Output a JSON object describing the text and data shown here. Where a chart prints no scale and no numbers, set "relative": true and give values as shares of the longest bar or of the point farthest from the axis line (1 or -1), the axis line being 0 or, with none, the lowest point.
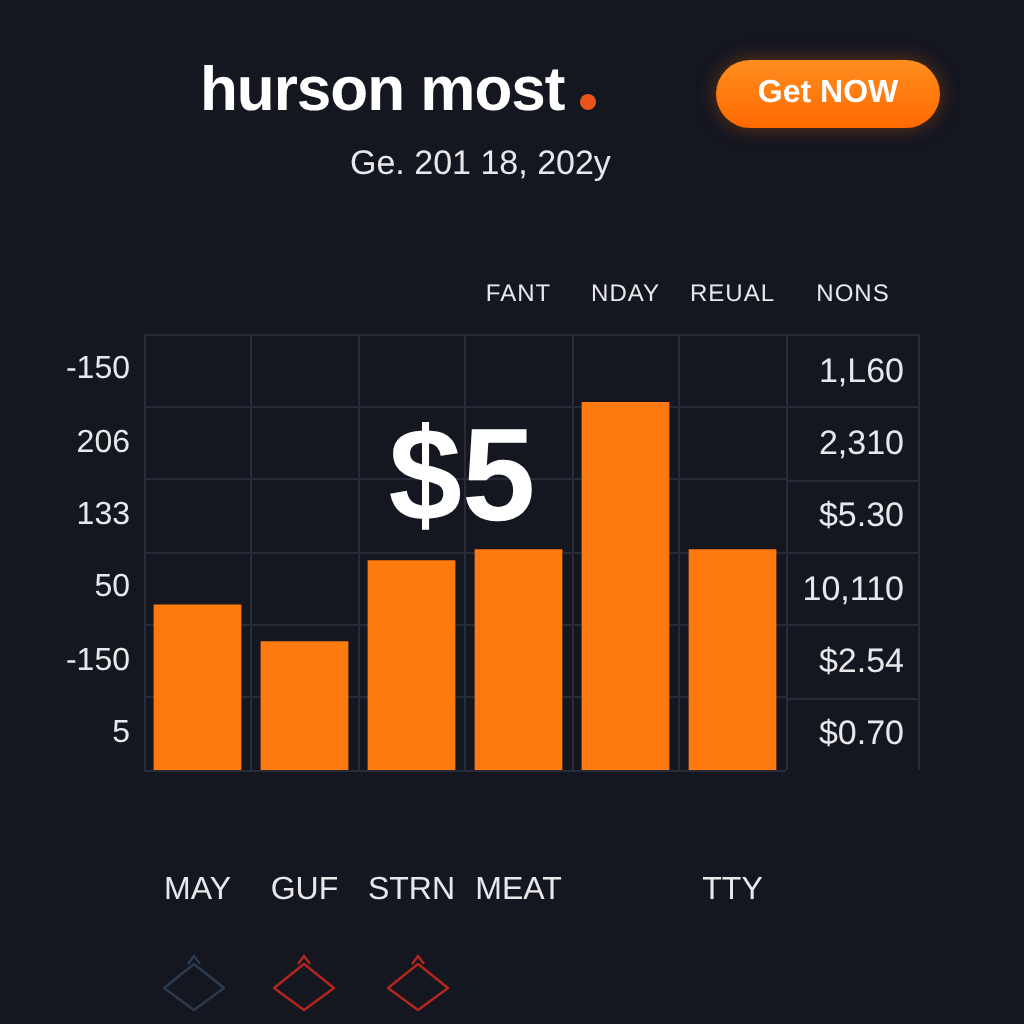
{
  "chart_data": {
    "type": "bar",
    "title": "hurson most",
    "subtitle": "Ge. 201 18, 202y",
    "categories": [
      "MAY",
      "GUF",
      "STRN",
      "MEAT",
      null,
      "TTY"
    ],
    "values": [
      0.45,
      0.35,
      0.57,
      0.6,
      1,
      0.6
    ],
    "color": "#ff7a0e",
    "relative": true,
    "grid": true,
    "annotations": [
      "Get NOW",
      "$5",
      "-150",
      "206",
      "133",
      "50",
      "-150",
      "5",
      "FANT",
      "NDAY",
      "REUAL",
      "NONS",
      "1,L60",
      "2,310",
      "$5.30",
      "10,110",
      "$2.54",
      "$0.70"
    ]
  }
}
